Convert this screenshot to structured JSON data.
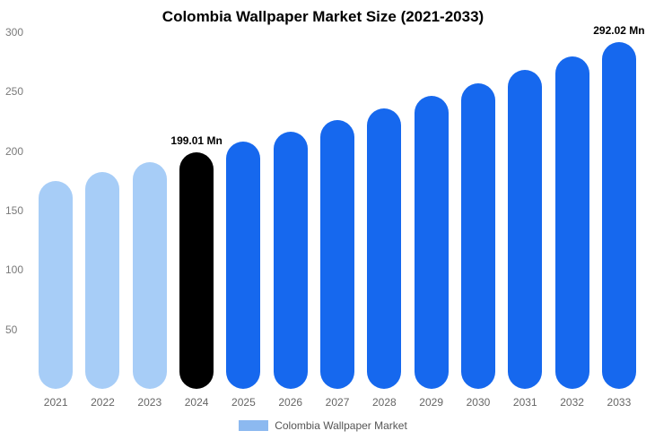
{
  "title": "Colombia Wallpaper Market Size (2021-2033)",
  "legend": {
    "label": "Colombia Wallpaper Market",
    "swatch_color": "#8cb9f0"
  },
  "colors": {
    "historical": "#a7cdf7",
    "base_year": "#000000",
    "forecast": "#1668ee"
  },
  "chart_data": {
    "type": "bar",
    "title": "Colombia Wallpaper Market Size (2021-2033)",
    "categories": [
      "2021",
      "2022",
      "2023",
      "2024",
      "2025",
      "2026",
      "2027",
      "2028",
      "2029",
      "2030",
      "2031",
      "2032",
      "2033"
    ],
    "values": [
      175.2,
      182.8,
      190.7,
      199.01,
      207.7,
      216.7,
      226.1,
      236.0,
      246.2,
      256.9,
      268.1,
      279.8,
      292.02
    ],
    "unit": "Mn",
    "bar_colors": [
      "#a7cdf7",
      "#a7cdf7",
      "#a7cdf7",
      "#000000",
      "#1668ee",
      "#1668ee",
      "#1668ee",
      "#1668ee",
      "#1668ee",
      "#1668ee",
      "#1668ee",
      "#1668ee",
      "#1668ee"
    ],
    "annotations": [
      {
        "index": 3,
        "text": "199.01 Mn"
      },
      {
        "index": 12,
        "text": "292.02 Mn"
      }
    ],
    "xlabel": "",
    "ylabel": "",
    "ylim": [
      0,
      300
    ],
    "yticks": [
      50,
      100,
      150,
      200,
      250,
      300
    ],
    "grid": false,
    "legend_position": "bottom",
    "legend_entries": [
      "Colombia Wallpaper Market"
    ]
  }
}
